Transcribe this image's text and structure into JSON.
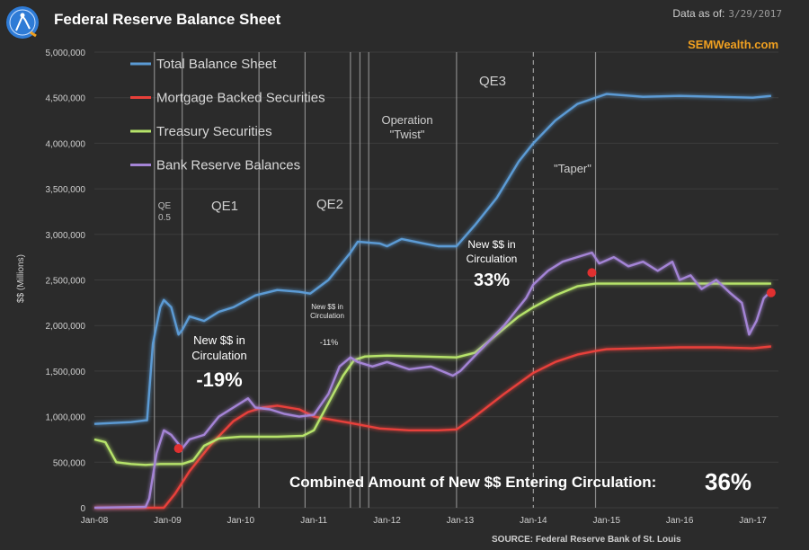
{
  "header": {
    "title": "Federal Reserve Balance Sheet",
    "as_of_label": "Data as of:",
    "as_of_date": "3/29/2017",
    "brand": "SEMWealth.com"
  },
  "colors": {
    "background": "#2b2b2b",
    "grid": "#3d3d3d",
    "total": "#5b9bd5",
    "mbs": "#e8403a",
    "treasury": "#b6e36a",
    "reserves": "#a484d6",
    "marker": "#e03030",
    "vline": "#9a9a9a"
  },
  "chart_data": {
    "type": "line",
    "title": "Federal Reserve Balance Sheet",
    "ylabel": "$$ (Millions)",
    "xlabel": "",
    "ylim": [
      0,
      5000000
    ],
    "xlim": [
      2008.0,
      2017.35
    ],
    "yticks": [
      0,
      500000,
      1000000,
      1500000,
      2000000,
      2500000,
      3000000,
      3500000,
      4000000,
      4500000,
      5000000
    ],
    "ytick_labels": [
      "0",
      "500,000",
      "1,000,000",
      "1,500,000",
      "2,000,000",
      "2,500,000",
      "3,000,000",
      "3,500,000",
      "4,000,000",
      "4,500,000",
      "5,000,000"
    ],
    "xticks": [
      2008,
      2009,
      2010,
      2011,
      2012,
      2013,
      2014,
      2015,
      2016,
      2017
    ],
    "xtick_labels": [
      "Jan-08",
      "Jan-09",
      "Jan-10",
      "Jan-11",
      "Jan-12",
      "Jan-13",
      "Jan-14",
      "Jan-15",
      "Jan-16",
      "Jan-17"
    ],
    "legend": [
      "Total Balance Sheet",
      "Mortgage Backed Securities",
      "Treasury Securities",
      "Bank Reserve Balances"
    ],
    "legend_position": "top-left",
    "series": [
      {
        "name": "Total Balance Sheet",
        "key": "total",
        "x": [
          2008.0,
          2008.5,
          2008.7,
          2008.72,
          2008.8,
          2008.9,
          2008.95,
          2009.05,
          2009.15,
          2009.2,
          2009.3,
          2009.5,
          2009.7,
          2009.9,
          2010.2,
          2010.5,
          2010.8,
          2010.95,
          2011.2,
          2011.5,
          2011.6,
          2011.9,
          2012.0,
          2012.2,
          2012.5,
          2012.7,
          2012.95,
          2013.2,
          2013.5,
          2013.8,
          2014.0,
          2014.3,
          2014.6,
          2014.85,
          2015.0,
          2015.5,
          2016.0,
          2016.5,
          2017.0,
          2017.25
        ],
        "y": [
          920000,
          940000,
          960000,
          960000,
          1800000,
          2200000,
          2280000,
          2200000,
          1900000,
          1950000,
          2100000,
          2050000,
          2150000,
          2200000,
          2330000,
          2390000,
          2370000,
          2350000,
          2500000,
          2800000,
          2920000,
          2900000,
          2870000,
          2950000,
          2900000,
          2870000,
          2870000,
          3100000,
          3400000,
          3800000,
          4000000,
          4250000,
          4430000,
          4500000,
          4540000,
          4510000,
          4520000,
          4510000,
          4500000,
          4520000
        ]
      },
      {
        "name": "Mortgage Backed Securities",
        "key": "mbs",
        "x": [
          2008.0,
          2008.95,
          2009.1,
          2009.3,
          2009.6,
          2009.9,
          2010.1,
          2010.3,
          2010.5,
          2010.8,
          2011.0,
          2011.5,
          2011.9,
          2012.3,
          2012.7,
          2012.95,
          2013.2,
          2013.6,
          2014.0,
          2014.3,
          2014.6,
          2014.85,
          2015.0,
          2015.5,
          2016.0,
          2016.5,
          2017.0,
          2017.25
        ],
        "y": [
          0,
          0,
          150000,
          400000,
          700000,
          950000,
          1050000,
          1100000,
          1120000,
          1080000,
          1000000,
          930000,
          870000,
          850000,
          850000,
          860000,
          1000000,
          1250000,
          1480000,
          1600000,
          1680000,
          1720000,
          1740000,
          1750000,
          1760000,
          1760000,
          1750000,
          1770000
        ]
      },
      {
        "name": "Treasury Securities",
        "key": "treasury",
        "x": [
          2008.0,
          2008.15,
          2008.3,
          2008.5,
          2008.7,
          2008.9,
          2009.2,
          2009.35,
          2009.5,
          2009.7,
          2010.0,
          2010.5,
          2010.85,
          2011.0,
          2011.2,
          2011.4,
          2011.55,
          2011.7,
          2012.0,
          2012.5,
          2012.95,
          2013.2,
          2013.5,
          2013.8,
          2014.0,
          2014.3,
          2014.6,
          2014.85,
          2015.0,
          2016.0,
          2017.0,
          2017.25
        ],
        "y": [
          750000,
          720000,
          500000,
          480000,
          470000,
          480000,
          480000,
          520000,
          680000,
          760000,
          780000,
          780000,
          790000,
          850000,
          1150000,
          1450000,
          1620000,
          1660000,
          1670000,
          1660000,
          1650000,
          1700000,
          1900000,
          2100000,
          2200000,
          2330000,
          2430000,
          2460000,
          2460000,
          2460000,
          2460000,
          2460000
        ]
      },
      {
        "name": "Bank Reserve Balances",
        "key": "reserves",
        "x": [
          2008.0,
          2008.7,
          2008.75,
          2008.85,
          2008.95,
          2009.05,
          2009.2,
          2009.3,
          2009.5,
          2009.7,
          2009.9,
          2010.0,
          2010.1,
          2010.2,
          2010.4,
          2010.6,
          2010.8,
          2011.0,
          2011.2,
          2011.35,
          2011.5,
          2011.6,
          2011.8,
          2012.0,
          2012.3,
          2012.6,
          2012.9,
          2013.0,
          2013.3,
          2013.6,
          2013.9,
          2014.0,
          2014.2,
          2014.4,
          2014.6,
          2014.8,
          2014.9,
          2015.1,
          2015.3,
          2015.5,
          2015.7,
          2015.9,
          2016.0,
          2016.15,
          2016.3,
          2016.5,
          2016.7,
          2016.85,
          2016.95,
          2017.05,
          2017.15,
          2017.25
        ],
        "y": [
          0,
          10000,
          100000,
          600000,
          850000,
          800000,
          650000,
          750000,
          800000,
          1000000,
          1100000,
          1150000,
          1200000,
          1100000,
          1080000,
          1030000,
          1000000,
          1020000,
          1250000,
          1550000,
          1650000,
          1600000,
          1550000,
          1600000,
          1520000,
          1550000,
          1450000,
          1500000,
          1750000,
          2000000,
          2300000,
          2450000,
          2600000,
          2700000,
          2750000,
          2800000,
          2680000,
          2750000,
          2650000,
          2700000,
          2600000,
          2700000,
          2500000,
          2550000,
          2400000,
          2500000,
          2350000,
          2250000,
          1900000,
          2050000,
          2300000,
          2380000
        ]
      }
    ],
    "vertical_lines": [
      2008.82,
      2009.2,
      2010.25,
      2010.88,
      2011.5,
      2011.63,
      2011.75,
      2012.95,
      2014.85
    ],
    "dashed_vertical_lines": [
      2014.0
    ],
    "markers": [
      {
        "x": 2009.15,
        "y": 650000
      },
      {
        "x": 2014.8,
        "y": 2580000
      },
      {
        "x": 2017.25,
        "y": 2360000
      }
    ],
    "annotations": {
      "qe05_line1": "QE",
      "qe05_line2": "0.5",
      "qe1": "QE1",
      "qe2": "QE2",
      "twist_line1": "Operation",
      "twist_line2": "\"Twist\"",
      "qe3": "QE3",
      "taper": "\"Taper\"",
      "qe1_new_line1": "New $$ in",
      "qe1_new_line2": "Circulation",
      "qe1_pct": "-19%",
      "qe2_new_line1": "New $$ in",
      "qe2_new_line2": "Circulation",
      "qe2_pct": "-11%",
      "qe3_new_line1": "New $$ in",
      "qe3_new_line2": "Circulation",
      "qe3_pct": "33%",
      "combined_label": "Combined Amount of New $$ Entering Circulation:",
      "combined_pct": "36%",
      "source": "SOURCE:  Federal Reserve Bank of St. Louis"
    }
  }
}
